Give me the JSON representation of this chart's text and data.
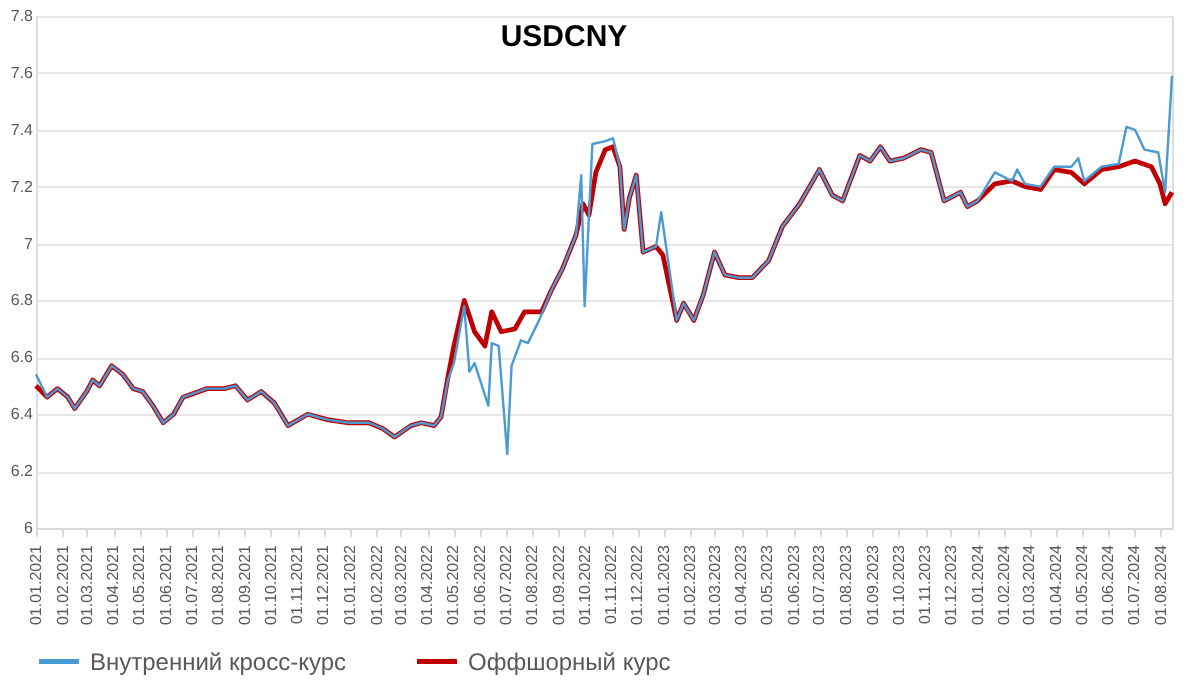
{
  "chart_data": {
    "type": "line",
    "title": "USDCNY",
    "xlim": [
      "2021-01-01",
      "2024-08-14"
    ],
    "ylim": [
      6,
      7.8
    ],
    "yticks": [
      6,
      6.2,
      6.4,
      6.6,
      6.8,
      7,
      7.2,
      7.4,
      7.6,
      7.8
    ],
    "xticks": [
      {
        "value": "2021-01-01",
        "label": "01.01.2021"
      },
      {
        "value": "2021-02-01",
        "label": "01.02.2021"
      },
      {
        "value": "2021-03-01",
        "label": "01.03.2021"
      },
      {
        "value": "2021-04-01",
        "label": "01.04.2021"
      },
      {
        "value": "2021-05-01",
        "label": "01.05.2021"
      },
      {
        "value": "2021-06-01",
        "label": "01.06.2021"
      },
      {
        "value": "2021-07-01",
        "label": "01.07.2021"
      },
      {
        "value": "2021-08-01",
        "label": "01.08.2021"
      },
      {
        "value": "2021-09-01",
        "label": "01.09.2021"
      },
      {
        "value": "2021-10-01",
        "label": "01.10.2021"
      },
      {
        "value": "2021-11-01",
        "label": "01.11.2021"
      },
      {
        "value": "2021-12-01",
        "label": "01.12.2021"
      },
      {
        "value": "2022-01-01",
        "label": "01.01.2022"
      },
      {
        "value": "2022-02-01",
        "label": "01.02.2022"
      },
      {
        "value": "2022-03-01",
        "label": "01.03.2022"
      },
      {
        "value": "2022-04-01",
        "label": "01.04.2022"
      },
      {
        "value": "2022-05-01",
        "label": "01.05.2022"
      },
      {
        "value": "2022-06-01",
        "label": "01.06.2022"
      },
      {
        "value": "2022-07-01",
        "label": "01.07.2022"
      },
      {
        "value": "2022-08-01",
        "label": "01.08.2022"
      },
      {
        "value": "2022-09-01",
        "label": "01.09.2022"
      },
      {
        "value": "2022-10-01",
        "label": "01.10.2022"
      },
      {
        "value": "2022-11-01",
        "label": "01.11.2022"
      },
      {
        "value": "2022-12-01",
        "label": "01.12.2022"
      },
      {
        "value": "2023-01-01",
        "label": "01.01.2023"
      },
      {
        "value": "2023-02-01",
        "label": "01.02.2023"
      },
      {
        "value": "2023-03-01",
        "label": "01.03.2023"
      },
      {
        "value": "2023-04-01",
        "label": "01.04.2023"
      },
      {
        "value": "2023-05-01",
        "label": "01.05.2023"
      },
      {
        "value": "2023-06-01",
        "label": "01.06.2023"
      },
      {
        "value": "2023-07-01",
        "label": "01.07.2023"
      },
      {
        "value": "2023-08-01",
        "label": "01.08.2023"
      },
      {
        "value": "2023-09-01",
        "label": "01.09.2023"
      },
      {
        "value": "2023-10-01",
        "label": "01.10.2023"
      },
      {
        "value": "2023-11-01",
        "label": "01.11.2023"
      },
      {
        "value": "2023-12-01",
        "label": "01.12.2023"
      },
      {
        "value": "2024-01-01",
        "label": "01.01.2024"
      },
      {
        "value": "2024-02-01",
        "label": "01.02.2024"
      },
      {
        "value": "2024-03-01",
        "label": "01.03.2024"
      },
      {
        "value": "2024-04-01",
        "label": "01.04.2024"
      },
      {
        "value": "2024-05-01",
        "label": "01.05.2024"
      },
      {
        "value": "2024-06-01",
        "label": "01.06.2024"
      },
      {
        "value": "2024-07-01",
        "label": "01.07.2024"
      },
      {
        "value": "2024-08-01",
        "label": "01.08.2024"
      }
    ],
    "grid": "y",
    "legend": "bottom",
    "series": [
      {
        "name": "Внутренний кросс-курс",
        "color": "#4a9ad4",
        "type": "line",
        "x": [
          "2021-01-01",
          "2021-01-14",
          "2021-01-26",
          "2021-02-07",
          "2021-02-15",
          "2021-03-01",
          "2021-03-08",
          "2021-03-16",
          "2021-03-30",
          "2021-04-12",
          "2021-04-24",
          "2021-05-05",
          "2021-05-17",
          "2021-05-29",
          "2021-06-10",
          "2021-06-21",
          "2021-07-19",
          "2021-08-08",
          "2021-08-21",
          "2021-09-04",
          "2021-09-20",
          "2021-10-05",
          "2021-10-21",
          "2021-11-13",
          "2021-12-07",
          "2021-12-31",
          "2022-01-23",
          "2022-02-08",
          "2022-02-22",
          "2022-03-13",
          "2022-03-25",
          "2022-04-09",
          "2022-04-17",
          "2022-04-25",
          "2022-05-02",
          "2022-05-14",
          "2022-05-20",
          "2022-05-26",
          "2022-06-11",
          "2022-06-15",
          "2022-06-23",
          "2022-07-03",
          "2022-07-08",
          "2022-07-19",
          "2022-07-27",
          "2022-08-09",
          "2022-08-24",
          "2022-09-05",
          "2022-09-21",
          "2022-09-27",
          "2022-10-01",
          "2022-10-10",
          "2022-10-25",
          "2022-11-03",
          "2022-11-11",
          "2022-11-16",
          "2022-11-22",
          "2022-11-30",
          "2022-12-08",
          "2022-12-23",
          "2022-12-29",
          "2023-01-16",
          "2023-01-24",
          "2023-02-05",
          "2023-02-16",
          "2023-03-01",
          "2023-03-13",
          "2023-03-29",
          "2023-04-14",
          "2023-05-03",
          "2023-05-19",
          "2023-06-08",
          "2023-07-01",
          "2023-07-16",
          "2023-07-28",
          "2023-08-17",
          "2023-08-29",
          "2023-09-10",
          "2023-09-21",
          "2023-10-07",
          "2023-10-27",
          "2023-11-08",
          "2023-11-23",
          "2023-12-12",
          "2023-12-20",
          "2024-01-01",
          "2024-01-21",
          "2024-02-10",
          "2024-02-16",
          "2024-02-25",
          "2024-03-14",
          "2024-03-30",
          "2024-04-19",
          "2024-04-27",
          "2024-05-04",
          "2024-05-24",
          "2024-06-13",
          "2024-06-22",
          "2024-07-02",
          "2024-07-13",
          "2024-07-29",
          "2024-08-06",
          "2024-08-14"
        ],
        "values": [
          6.54,
          6.46,
          6.49,
          6.46,
          6.42,
          6.48,
          6.52,
          6.5,
          6.57,
          6.54,
          6.49,
          6.48,
          6.43,
          6.37,
          6.4,
          6.46,
          6.49,
          6.49,
          6.5,
          6.45,
          6.48,
          6.44,
          6.36,
          6.4,
          6.38,
          6.37,
          6.37,
          6.35,
          6.32,
          6.36,
          6.37,
          6.36,
          6.39,
          6.52,
          6.58,
          6.78,
          6.55,
          6.58,
          6.43,
          6.65,
          6.64,
          6.26,
          6.57,
          6.66,
          6.65,
          6.73,
          6.84,
          6.91,
          7.03,
          7.24,
          6.78,
          7.35,
          7.36,
          7.37,
          7.27,
          7.05,
          7.16,
          7.24,
          6.97,
          6.99,
          7.11,
          6.73,
          6.79,
          6.73,
          6.82,
          6.97,
          6.89,
          6.88,
          6.88,
          6.94,
          7.06,
          7.14,
          7.26,
          7.17,
          7.15,
          7.31,
          7.29,
          7.34,
          7.29,
          7.3,
          7.33,
          7.32,
          7.15,
          7.18,
          7.13,
          7.15,
          7.25,
          7.22,
          7.26,
          7.21,
          7.2,
          7.27,
          7.27,
          7.3,
          7.22,
          7.27,
          7.28,
          7.41,
          7.4,
          7.33,
          7.32,
          7.18,
          7.59
        ]
      },
      {
        "name": "Оффшорный курс",
        "color": "#c00000",
        "type": "line",
        "x": [
          "2021-01-01",
          "2021-01-14",
          "2021-01-26",
          "2021-02-07",
          "2021-02-15",
          "2021-03-01",
          "2021-03-08",
          "2021-03-16",
          "2021-03-30",
          "2021-04-12",
          "2021-04-24",
          "2021-05-05",
          "2021-05-17",
          "2021-05-29",
          "2021-06-10",
          "2021-06-21",
          "2021-07-19",
          "2021-08-08",
          "2021-08-21",
          "2021-09-04",
          "2021-09-20",
          "2021-10-05",
          "2021-10-21",
          "2021-11-13",
          "2021-12-07",
          "2021-12-31",
          "2022-01-23",
          "2022-02-08",
          "2022-02-22",
          "2022-03-13",
          "2022-03-25",
          "2022-04-09",
          "2022-04-17",
          "2022-04-25",
          "2022-05-02",
          "2022-05-14",
          "2022-05-26",
          "2022-06-07",
          "2022-06-15",
          "2022-06-26",
          "2022-07-12",
          "2022-07-23",
          "2022-08-12",
          "2022-08-24",
          "2022-09-05",
          "2022-09-21",
          "2022-09-29",
          "2022-10-06",
          "2022-10-14",
          "2022-10-25",
          "2022-11-03",
          "2022-11-11",
          "2022-11-16",
          "2022-11-22",
          "2022-11-30",
          "2022-12-08",
          "2022-12-23",
          "2022-12-31",
          "2023-01-16",
          "2023-01-24",
          "2023-02-05",
          "2023-02-16",
          "2023-03-01",
          "2023-03-13",
          "2023-03-29",
          "2023-04-14",
          "2023-05-03",
          "2023-05-19",
          "2023-06-08",
          "2023-07-01",
          "2023-07-16",
          "2023-07-28",
          "2023-08-17",
          "2023-08-29",
          "2023-09-10",
          "2023-09-21",
          "2023-10-07",
          "2023-10-27",
          "2023-11-08",
          "2023-11-23",
          "2023-12-12",
          "2023-12-20",
          "2024-01-01",
          "2024-01-21",
          "2024-02-10",
          "2024-02-25",
          "2024-03-14",
          "2024-03-30",
          "2024-04-19",
          "2024-05-04",
          "2024-05-24",
          "2024-06-13",
          "2024-07-02",
          "2024-07-21",
          "2024-07-31",
          "2024-08-06",
          "2024-08-14"
        ],
        "values": [
          6.5,
          6.46,
          6.49,
          6.46,
          6.42,
          6.48,
          6.52,
          6.5,
          6.57,
          6.54,
          6.49,
          6.48,
          6.43,
          6.37,
          6.4,
          6.46,
          6.49,
          6.49,
          6.5,
          6.45,
          6.48,
          6.44,
          6.36,
          6.4,
          6.38,
          6.37,
          6.37,
          6.35,
          6.32,
          6.36,
          6.37,
          6.36,
          6.39,
          6.53,
          6.64,
          6.8,
          6.69,
          6.64,
          6.76,
          6.69,
          6.7,
          6.76,
          6.76,
          6.84,
          6.91,
          7.03,
          7.14,
          7.1,
          7.25,
          7.33,
          7.34,
          7.27,
          7.05,
          7.16,
          7.24,
          6.97,
          6.99,
          6.96,
          6.73,
          6.79,
          6.73,
          6.82,
          6.97,
          6.89,
          6.88,
          6.88,
          6.94,
          7.06,
          7.14,
          7.26,
          7.17,
          7.15,
          7.31,
          7.29,
          7.34,
          7.29,
          7.3,
          7.33,
          7.32,
          7.15,
          7.18,
          7.13,
          7.15,
          7.21,
          7.22,
          7.2,
          7.19,
          7.26,
          7.25,
          7.21,
          7.26,
          7.27,
          7.29,
          7.27,
          7.21,
          7.14,
          7.18
        ]
      }
    ]
  }
}
